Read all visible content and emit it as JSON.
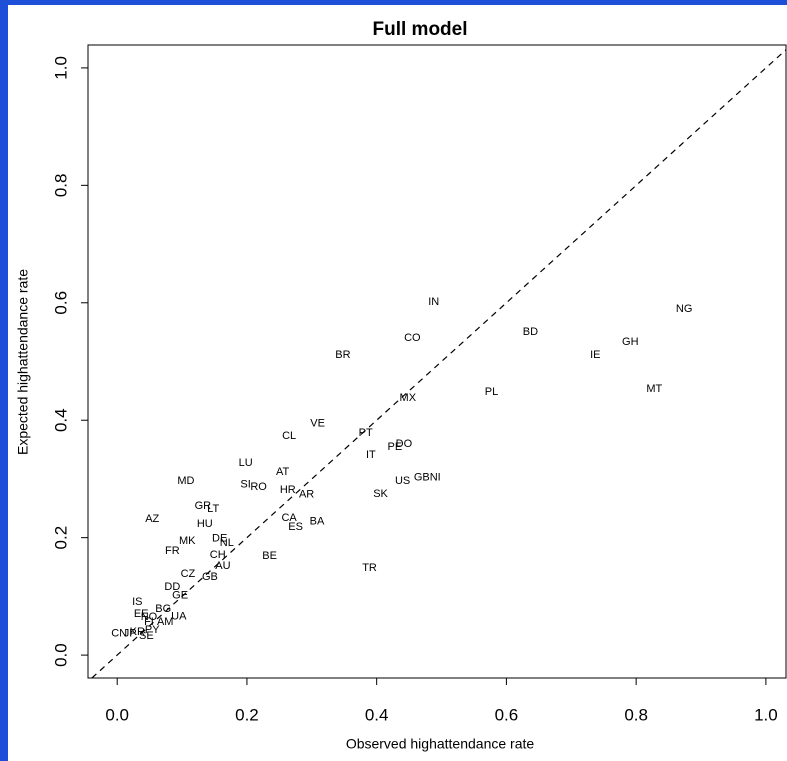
{
  "chart_data": {
    "type": "scatter",
    "title": "Full model",
    "x_label": "Observed highattendance rate",
    "y_label": "Expected highattendance rate",
    "labels": [
      "IN",
      "NG",
      "BD",
      "CO",
      "GH",
      "BR",
      "IE",
      "MT",
      "PL",
      "MX",
      "VE",
      "PT",
      "CL",
      "DO",
      "PE",
      "IT",
      "LU",
      "AT",
      "MD",
      "US",
      "GBNI",
      "SI",
      "RO",
      "HR",
      "AR",
      "SK",
      "GR",
      "LT",
      "AZ",
      "CA",
      "HU",
      "BA",
      "ES",
      "DE",
      "MK",
      "NL",
      "FR",
      "CH",
      "BE",
      "AU",
      "TR",
      "CZ",
      "GB",
      "DD",
      "GE",
      "IS",
      "BG",
      "EE",
      "NO",
      "UA",
      "FI",
      "AM",
      "CN",
      "JP",
      "KR",
      "PY",
      "SE"
    ],
    "x": [
      0.488,
      0.874,
      0.637,
      0.455,
      0.791,
      0.348,
      0.737,
      0.828,
      0.577,
      0.448,
      0.309,
      0.383,
      0.265,
      0.442,
      0.428,
      0.391,
      0.198,
      0.255,
      0.106,
      0.44,
      0.478,
      0.198,
      0.218,
      0.263,
      0.292,
      0.406,
      0.132,
      0.148,
      0.054,
      0.265,
      0.135,
      0.308,
      0.275,
      0.158,
      0.108,
      0.169,
      0.085,
      0.155,
      0.235,
      0.163,
      0.389,
      0.109,
      0.143,
      0.085,
      0.097,
      0.031,
      0.071,
      0.037,
      0.049,
      0.095,
      0.049,
      0.074,
      0.003,
      0.02,
      0.031,
      0.054,
      0.045
    ],
    "y": [
      0.601,
      0.589,
      0.55,
      0.54,
      0.533,
      0.511,
      0.511,
      0.453,
      0.448,
      0.438,
      0.394,
      0.378,
      0.373,
      0.359,
      0.354,
      0.341,
      0.327,
      0.312,
      0.296,
      0.296,
      0.302,
      0.29,
      0.286,
      0.281,
      0.273,
      0.274,
      0.254,
      0.249,
      0.232,
      0.233,
      0.223,
      0.227,
      0.218,
      0.198,
      0.194,
      0.191,
      0.177,
      0.17,
      0.169,
      0.152,
      0.148,
      0.138,
      0.133,
      0.116,
      0.101,
      0.09,
      0.078,
      0.07,
      0.065,
      0.066,
      0.056,
      0.056,
      0.037,
      0.037,
      0.039,
      0.043,
      0.032
    ],
    "xlim": [
      -0.045,
      1.031
    ],
    "ylim": [
      -0.039,
      1.039
    ],
    "xticks": [
      {
        "value": 0,
        "label": "0.0"
      },
      {
        "value": 0.2,
        "label": "0.2"
      },
      {
        "value": 0.4,
        "label": "0.4"
      },
      {
        "value": 0.6,
        "label": "0.6"
      },
      {
        "value": 0.8,
        "label": "0.8"
      },
      {
        "value": 1,
        "label": "1.0"
      }
    ],
    "yticks": [
      {
        "value": 0,
        "label": "0.0"
      },
      {
        "value": 0.2,
        "label": "0.2"
      },
      {
        "value": 0.4,
        "label": "0.4"
      },
      {
        "value": 0.6,
        "label": "0.6"
      },
      {
        "value": 0.8,
        "label": "0.8"
      },
      {
        "value": 1,
        "label": "1.0"
      }
    ],
    "identity_line": true
  }
}
